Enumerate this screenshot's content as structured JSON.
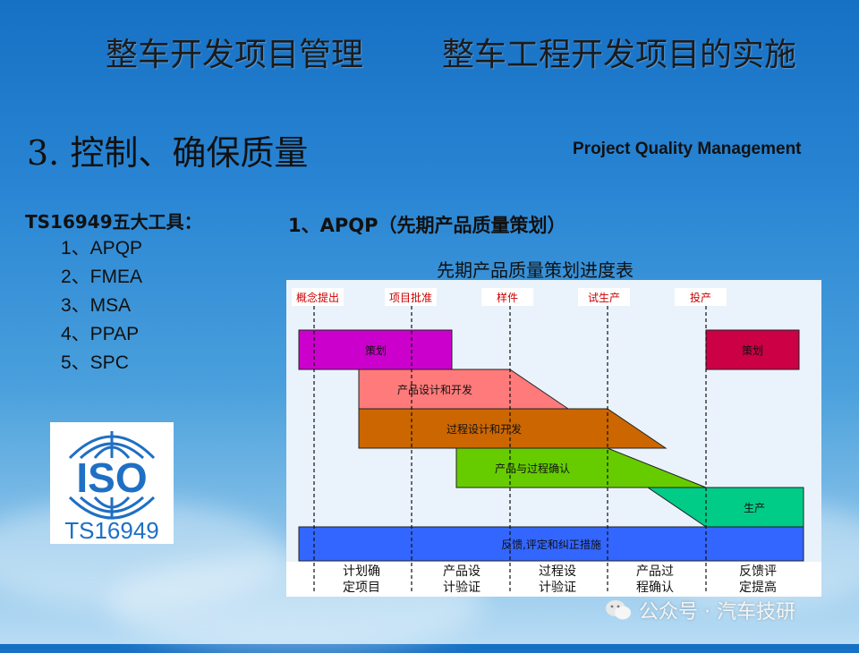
{
  "header": {
    "left_title": "整车开发项目管理",
    "right_title": "整车工程开发项目的实施"
  },
  "section": {
    "title": "3.  控制、确保质量",
    "subtitle_en": "Project Quality Management"
  },
  "tools": {
    "heading": "TS16949五大工具：",
    "items": [
      "1、APQP",
      "2、FMEA",
      "3、MSA",
      "4、PPAP",
      "5、SPC"
    ]
  },
  "logo": {
    "main": "ISO",
    "sub": "TS16949"
  },
  "apqp_heading": "1、APQP（先期产品质量策划）",
  "chart_title": "先期产品质量策划进度表",
  "diagram": {
    "milestones": [
      "概念提出",
      "项目批准",
      "样件",
      "试生产",
      "投产"
    ],
    "bars": [
      {
        "label": "策划",
        "color": "#cc00cc"
      },
      {
        "label": "产品设计和开发",
        "color": "#ff7a7a"
      },
      {
        "label": "过程设计和开发",
        "color": "#cc6600"
      },
      {
        "label": "产品与过程确认",
        "color": "#66cc00"
      },
      {
        "label": "生产",
        "color": "#00cc88"
      },
      {
        "label": "反馈,评定和纠正措施",
        "color": "#3366ff"
      },
      {
        "label": "策划",
        "color": "#cc0044"
      }
    ],
    "phases": [
      [
        "计划确",
        "定项目"
      ],
      [
        "产品设",
        "计验证"
      ],
      [
        "过程设",
        "计验证"
      ],
      [
        "产品过",
        "程确认"
      ],
      [
        "反馈评",
        "定提高"
      ]
    ],
    "milestone_color": "#cc0000"
  },
  "watermark": "公众号 · 汽车技研"
}
